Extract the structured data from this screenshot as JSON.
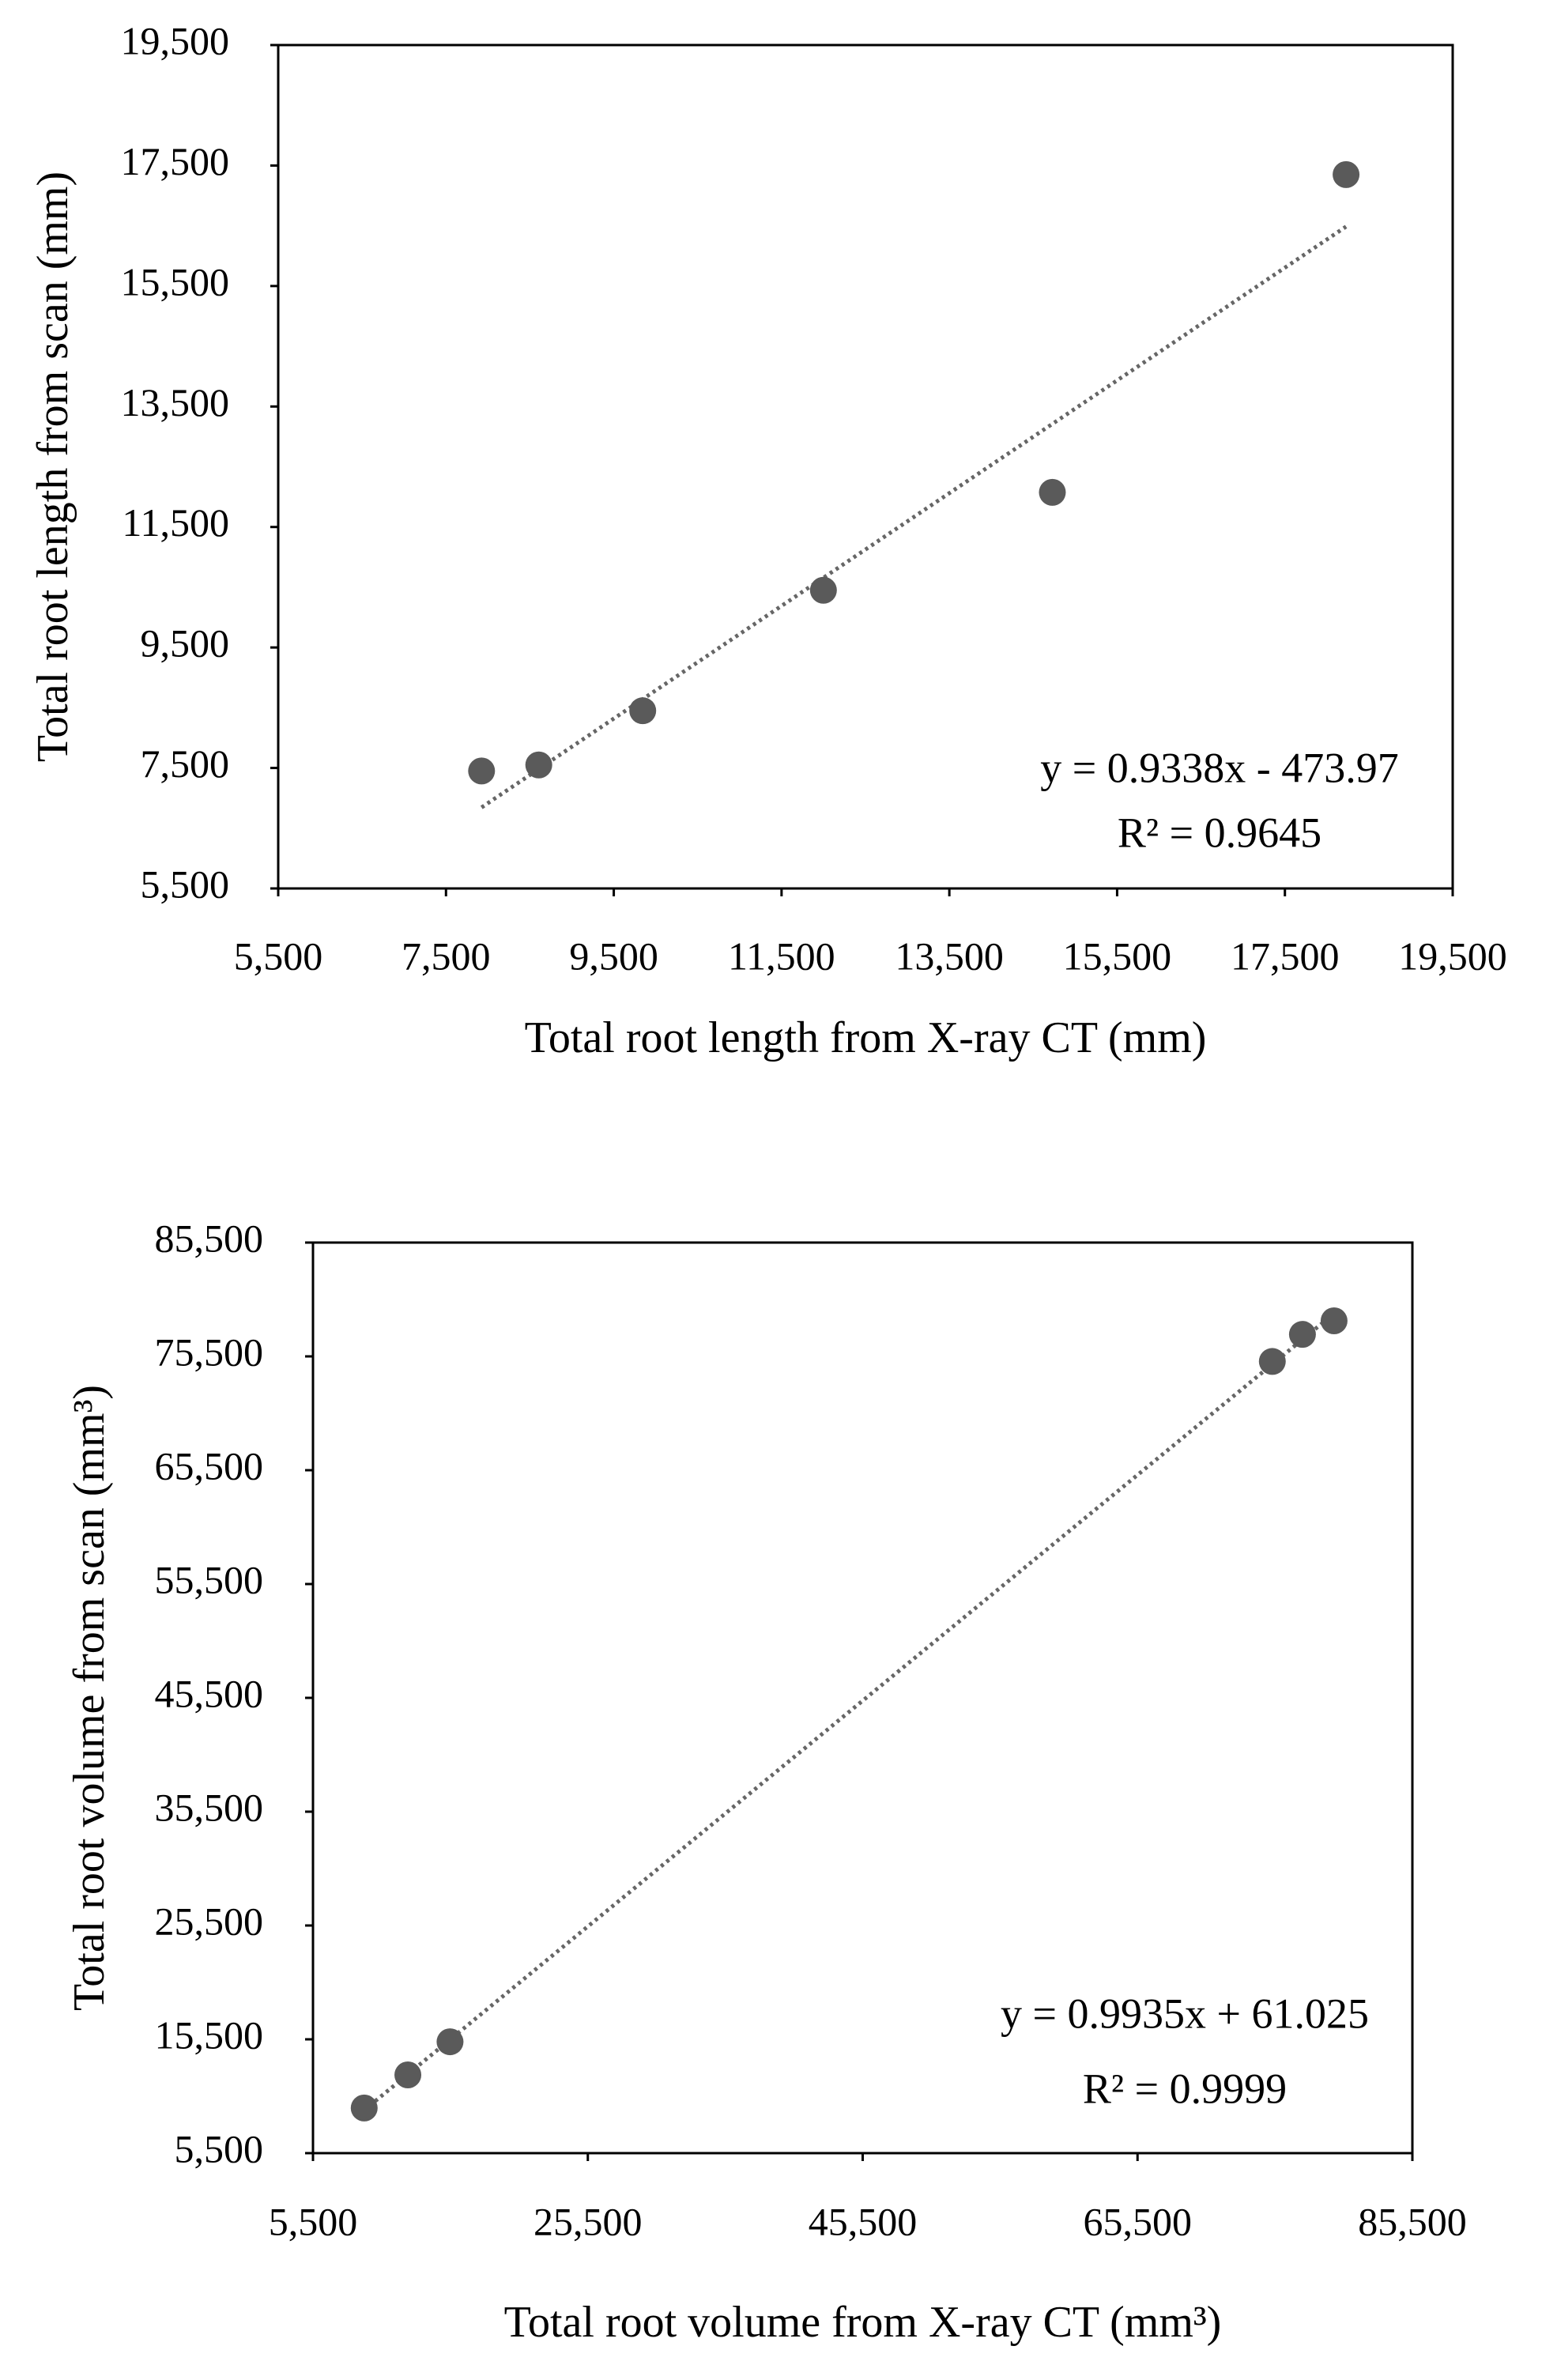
{
  "chart_data": [
    {
      "type": "scatter",
      "x_label": "Total root length from X-ray CT (mm)",
      "y_label": "Total root length from scan (mm)",
      "series": [
        {
          "color": "#5a5a5a",
          "x": [
            7924,
            8606,
            9845,
            11999,
            14728,
            18229
          ],
          "values": [
            7450,
            7550,
            8450,
            10450,
            12075,
            17350
          ]
        }
      ],
      "trendline": true,
      "annotations": [
        "y = 0.9338x - 473.97",
        "R² = 0.9645"
      ],
      "xlim": [
        5500,
        19500
      ],
      "xticks": [
        {
          "value": 5500,
          "label": "5,500"
        },
        {
          "value": 7500,
          "label": "7,500"
        },
        {
          "value": 9500,
          "label": "9,500"
        },
        {
          "value": 11500,
          "label": "11,500"
        },
        {
          "value": 13500,
          "label": "13,500"
        },
        {
          "value": 15500,
          "label": "15,500"
        },
        {
          "value": 17500,
          "label": "17,500"
        },
        {
          "value": 19500,
          "label": "19,500"
        }
      ],
      "ylim": [
        5500,
        19500
      ],
      "yticks": [
        {
          "value": 5500,
          "label": "5,500"
        },
        {
          "value": 7500,
          "label": "7,500"
        },
        {
          "value": 9500,
          "label": "9,500"
        },
        {
          "value": 11500,
          "label": "11,500"
        },
        {
          "value": 13500,
          "label": "13,500"
        },
        {
          "value": 15500,
          "label": "15,500"
        },
        {
          "value": 17500,
          "label": "17,500"
        },
        {
          "value": 19500,
          "label": "19,500"
        }
      ]
    },
    {
      "type": "scatter",
      "x_label": "Total root volume from X-ray CT (mm³)",
      "y_label": "Total root volume from scan (mm³)",
      "series": [
        {
          "color": "#5a5a5a",
          "x": [
            9226,
            12404,
            15473,
            75308,
            77500,
            79801
          ],
          "values": [
            9467,
            12376,
            15285,
            75054,
            77434,
            78624
          ]
        }
      ],
      "trendline": true,
      "annotations": [
        "y = 0.9935x + 61.025",
        "R² = 0.9999"
      ],
      "xlim": [
        5500,
        85500
      ],
      "xticks": [
        {
          "value": 5500,
          "label": "5,500"
        },
        {
          "value": 25500,
          "label": "25,500"
        },
        {
          "value": 45500,
          "label": "45,500"
        },
        {
          "value": 65500,
          "label": "65,500"
        },
        {
          "value": 85500,
          "label": "85,500"
        }
      ],
      "ylim": [
        5500,
        85500
      ],
      "yticks": [
        {
          "value": 5500,
          "label": "5,500"
        },
        {
          "value": 15500,
          "label": "15,500"
        },
        {
          "value": 25500,
          "label": "25,500"
        },
        {
          "value": 35500,
          "label": "35,500"
        },
        {
          "value": 45500,
          "label": "45,500"
        },
        {
          "value": 55500,
          "label": "55,500"
        },
        {
          "value": 65500,
          "label": "65,500"
        },
        {
          "value": 75500,
          "label": "75,500"
        },
        {
          "value": 85500,
          "label": "85,500"
        }
      ]
    }
  ]
}
